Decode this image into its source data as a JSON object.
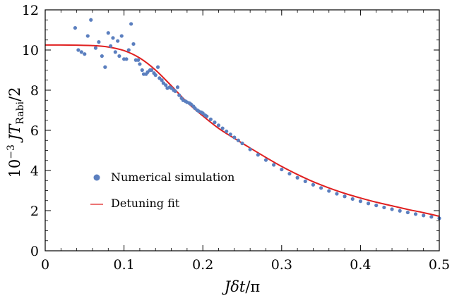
{
  "chart_data": {
    "type": "scatter",
    "xlabel": "Jδt/π",
    "ylabel": "10⁻³ JT_Rabi/2",
    "ylabel_parts": {
      "prefix": "10",
      "exponent": "−3",
      "main": "JT",
      "subscript": "Rabi",
      "suffix": "/2"
    },
    "xlabel_parts": {
      "main": "Jδt",
      "suffix": "/π"
    },
    "xlim": [
      0,
      0.5
    ],
    "ylim": [
      0,
      12
    ],
    "x_ticks": [
      0,
      0.1,
      0.2,
      0.3,
      0.4,
      0.5
    ],
    "x_tick_labels": [
      "0",
      "0.1",
      "0.2",
      "0.3",
      "0.4",
      "0.5"
    ],
    "y_ticks": [
      0,
      2,
      4,
      6,
      8,
      10,
      12
    ],
    "y_tick_labels": [
      "0",
      "2",
      "4",
      "6",
      "8",
      "10",
      "12"
    ],
    "grid": false,
    "legend_position": "center-left",
    "series": [
      {
        "name": "Numerical simulation",
        "kind": "scatter",
        "color": "#5b7fbf",
        "x": [
          0.038,
          0.042,
          0.046,
          0.05,
          0.054,
          0.058,
          0.064,
          0.068,
          0.072,
          0.076,
          0.08,
          0.083,
          0.086,
          0.089,
          0.092,
          0.094,
          0.097,
          0.1,
          0.103,
          0.106,
          0.109,
          0.112,
          0.115,
          0.118,
          0.12,
          0.123,
          0.125,
          0.128,
          0.13,
          0.133,
          0.135,
          0.138,
          0.14,
          0.143,
          0.145,
          0.148,
          0.15,
          0.153,
          0.155,
          0.158,
          0.16,
          0.163,
          0.165,
          0.168,
          0.17,
          0.173,
          0.175,
          0.178,
          0.18,
          0.183,
          0.185,
          0.188,
          0.19,
          0.193,
          0.195,
          0.198,
          0.2,
          0.203,
          0.205,
          0.21,
          0.215,
          0.22,
          0.225,
          0.23,
          0.235,
          0.24,
          0.245,
          0.25,
          0.26,
          0.27,
          0.28,
          0.29,
          0.3,
          0.31,
          0.32,
          0.33,
          0.34,
          0.35,
          0.36,
          0.37,
          0.38,
          0.39,
          0.4,
          0.41,
          0.42,
          0.43,
          0.44,
          0.45,
          0.46,
          0.47,
          0.48,
          0.49,
          0.5
        ],
        "y": [
          11.1,
          10.0,
          9.9,
          9.8,
          10.7,
          11.5,
          10.1,
          10.4,
          9.7,
          9.15,
          10.85,
          10.2,
          10.6,
          9.9,
          10.45,
          9.7,
          10.7,
          9.55,
          9.55,
          10.0,
          11.3,
          10.3,
          9.5,
          9.5,
          9.3,
          9.0,
          8.8,
          8.8,
          8.9,
          9.0,
          9.0,
          8.85,
          8.75,
          9.15,
          8.6,
          8.5,
          8.35,
          8.25,
          8.1,
          8.15,
          8.1,
          8.0,
          7.95,
          8.15,
          7.75,
          7.6,
          7.5,
          7.45,
          7.4,
          7.35,
          7.3,
          7.2,
          7.1,
          7.0,
          6.95,
          6.9,
          6.85,
          6.75,
          6.7,
          6.55,
          6.4,
          6.25,
          6.1,
          5.95,
          5.8,
          5.65,
          5.5,
          5.35,
          5.05,
          4.78,
          4.52,
          4.28,
          4.05,
          3.84,
          3.64,
          3.46,
          3.29,
          3.13,
          2.98,
          2.84,
          2.71,
          2.58,
          2.47,
          2.36,
          2.26,
          2.16,
          2.07,
          1.99,
          1.91,
          1.83,
          1.76,
          1.69,
          1.62
        ]
      },
      {
        "name": "Detuning fit",
        "kind": "line",
        "color": "#e02020",
        "x": [
          0,
          0.02,
          0.04,
          0.06,
          0.08,
          0.1,
          0.12,
          0.14,
          0.16,
          0.18,
          0.2,
          0.22,
          0.24,
          0.26,
          0.28,
          0.3,
          0.32,
          0.34,
          0.36,
          0.38,
          0.4,
          0.42,
          0.44,
          0.46,
          0.48,
          0.5
        ],
        "y": [
          10.25,
          10.25,
          10.24,
          10.22,
          10.15,
          9.97,
          9.6,
          9.0,
          8.22,
          7.4,
          6.72,
          6.1,
          5.6,
          5.12,
          4.65,
          4.2,
          3.8,
          3.44,
          3.13,
          2.86,
          2.63,
          2.42,
          2.24,
          2.06,
          1.9,
          1.72
        ]
      }
    ]
  }
}
